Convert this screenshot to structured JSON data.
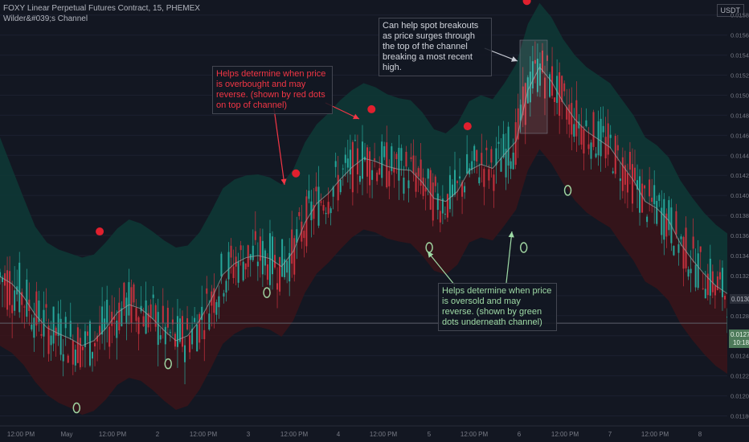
{
  "legend": {
    "symbol": "FOXY Linear Perpetual Futures Contract, 15, PHEMEX",
    "indicator": "Wilder&#039;s Channel"
  },
  "currency_label": "USDT",
  "annotations": {
    "overbought": "Helps determine when price is overbought and may reverse. (shown by red dots on top of channel)",
    "breakout": "Can help spot breakouts as price surges through the top of the channel breaking a most recent high.",
    "oversold": "Helps determine when price is oversold and may reverse. (shown by green dots underneath channel)"
  },
  "colors": {
    "background": "#131722",
    "upper_fill": "#0e3a36",
    "lower_fill": "#3b1419",
    "mid_line": "#9aa6a6",
    "candle_up": "#26a69a",
    "candle_down": "#c8313e",
    "red_dot": "#e0202e",
    "green_dot": "#9fd3a0",
    "axis_text": "#787b86"
  },
  "chart_data": {
    "type": "line",
    "title": "",
    "y_axis_ticks": [
      "0.015800",
      "0.015600",
      "0.015400",
      "0.015200",
      "0.015000",
      "0.014800",
      "0.014600",
      "0.014400",
      "0.014200",
      "0.014000",
      "0.013800",
      "0.013600",
      "0.013400",
      "0.013200",
      "0.013000",
      "0.012800",
      "0.012600",
      "0.012400",
      "0.012200",
      "0.012000",
      "0.011800"
    ],
    "x_axis_ticks": [
      "12:00 PM",
      "May",
      "12:00 PM",
      "2",
      "12:00 PM",
      "3",
      "12:00 PM",
      "4",
      "12:00 PM",
      "5",
      "12:00 PM",
      "6",
      "12:00 PM",
      "7",
      "12:00 PM",
      "8"
    ],
    "ylim": [
      0.01178,
      0.01595
    ],
    "price_labels": {
      "upper": "0.013078",
      "current": "0.012725",
      "countdown": "10:18"
    },
    "mid_price": [
      0.01319,
      0.01312,
      0.01299,
      0.01281,
      0.01268,
      0.01262,
      0.01257,
      0.0125,
      0.01255,
      0.01267,
      0.01283,
      0.01291,
      0.01287,
      0.01277,
      0.01265,
      0.01255,
      0.0126,
      0.01275,
      0.01296,
      0.01321,
      0.01332,
      0.01338,
      0.0134,
      0.01337,
      0.01329,
      0.01344,
      0.01373,
      0.01392,
      0.01402,
      0.01416,
      0.01428,
      0.01437,
      0.01434,
      0.01429,
      0.01426,
      0.01425,
      0.01413,
      0.01397,
      0.01394,
      0.01404,
      0.01425,
      0.01431,
      0.01427,
      0.01441,
      0.01454,
      0.01505,
      0.01528,
      0.01514,
      0.01493,
      0.01476,
      0.01464,
      0.01456,
      0.01448,
      0.01431,
      0.01415,
      0.01394,
      0.01387,
      0.01375,
      0.01352,
      0.01336,
      0.01322,
      0.0131,
      0.01302
    ],
    "upper_band": [
      0.01458,
      0.01428,
      0.01398,
      0.01369,
      0.01353,
      0.01346,
      0.01342,
      0.01338,
      0.01341,
      0.01353,
      0.01367,
      0.01376,
      0.01372,
      0.01364,
      0.01355,
      0.01348,
      0.0135,
      0.01363,
      0.01384,
      0.01407,
      0.01416,
      0.0142,
      0.01421,
      0.01418,
      0.01411,
      0.01426,
      0.01453,
      0.01471,
      0.01482,
      0.01495,
      0.01505,
      0.01512,
      0.01508,
      0.01501,
      0.01497,
      0.01495,
      0.01483,
      0.01466,
      0.01462,
      0.01472,
      0.01494,
      0.015,
      0.01496,
      0.01512,
      0.01531,
      0.01571,
      0.01592,
      0.01578,
      0.01556,
      0.0154,
      0.01528,
      0.0152,
      0.01512,
      0.01496,
      0.0148,
      0.01458,
      0.0145,
      0.01438,
      0.01415,
      0.01398,
      0.01383,
      0.01371,
      0.01362
    ],
    "lower_band": [
      0.0125,
      0.01243,
      0.01231,
      0.01214,
      0.01201,
      0.01193,
      0.01188,
      0.01181,
      0.01185,
      0.01196,
      0.01211,
      0.01218,
      0.01215,
      0.01206,
      0.01195,
      0.01186,
      0.0119,
      0.01206,
      0.01228,
      0.01252,
      0.01262,
      0.01268,
      0.01269,
      0.01266,
      0.01259,
      0.01275,
      0.01303,
      0.01322,
      0.01333,
      0.01346,
      0.01358,
      0.01366,
      0.01363,
      0.01357,
      0.01354,
      0.01352,
      0.0134,
      0.01325,
      0.01321,
      0.01331,
      0.01353,
      0.01358,
      0.01355,
      0.0137,
      0.01386,
      0.01425,
      0.01446,
      0.01432,
      0.01412,
      0.01395,
      0.01383,
      0.01375,
      0.01368,
      0.01351,
      0.01335,
      0.01314,
      0.01307,
      0.01295,
      0.01272,
      0.01256,
      0.01242,
      0.0123,
      0.01222
    ],
    "overbought_signals": [
      {
        "x": 0.01371,
        "y": 0.01364
      },
      {
        "x": 0.04069,
        "y": 0.01422
      },
      {
        "x": 0.05108,
        "y": 0.01486
      },
      {
        "x": 0.06429,
        "y": 0.01469
      },
      {
        "x": 0.07244,
        "y": 0.01594
      }
    ],
    "oversold_signals": [
      {
        "x": 0.01053,
        "y": 0.01188
      },
      {
        "x": 0.02312,
        "y": 0.01232
      },
      {
        "x": 0.03669,
        "y": 0.01303
      },
      {
        "x": 0.05902,
        "y": 0.01348
      },
      {
        "x": 0.07201,
        "y": 0.01348
      },
      {
        "x": 0.07807,
        "y": 0.01405
      }
    ]
  }
}
